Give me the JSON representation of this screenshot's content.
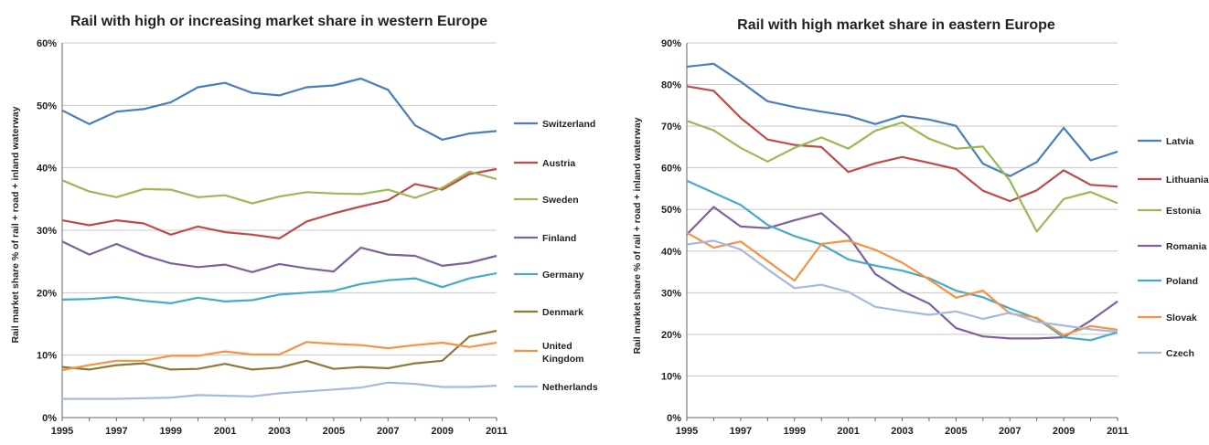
{
  "chart_data": [
    {
      "type": "line",
      "title": "Rail with high or increasing market share in western Europe",
      "ylabel": "Rail market share %  of rail + road + inland waterway",
      "xlabel": "",
      "x": [
        1995,
        1996,
        1997,
        1998,
        1999,
        2000,
        2001,
        2002,
        2003,
        2004,
        2005,
        2006,
        2007,
        2008,
        2009,
        2010,
        2011
      ],
      "xticks": [
        "1995",
        "1997",
        "1999",
        "2001",
        "2003",
        "2005",
        "2007",
        "2009",
        "2011"
      ],
      "ylim": [
        0,
        60
      ],
      "yticks": [
        "0%",
        "10%",
        "20%",
        "30%",
        "40%",
        "50%",
        "60%"
      ],
      "grid": true,
      "legend_position": "right",
      "series": [
        {
          "name": "Switzerland",
          "color": "#4a7ebb",
          "values": [
            49.2,
            47.0,
            49.0,
            49.4,
            50.5,
            52.9,
            53.6,
            52.0,
            51.6,
            52.9,
            53.2,
            54.3,
            52.5,
            46.8,
            44.5,
            45.5,
            45.9
          ]
        },
        {
          "name": "Austria",
          "color": "#be4b48",
          "values": [
            31.6,
            30.8,
            31.6,
            31.1,
            29.3,
            30.6,
            29.7,
            29.3,
            28.7,
            31.4,
            32.7,
            33.8,
            34.8,
            37.4,
            36.5,
            39.0,
            39.8
          ]
        },
        {
          "name": "Sweden",
          "color": "#98b954",
          "values": [
            38.0,
            36.2,
            35.3,
            36.6,
            36.5,
            35.3,
            35.6,
            34.3,
            35.4,
            36.1,
            35.9,
            35.8,
            36.5,
            35.2,
            36.8,
            39.4,
            38.2
          ]
        },
        {
          "name": "Finland",
          "color": "#7d60a0",
          "values": [
            28.2,
            26.1,
            27.8,
            26.0,
            24.7,
            24.1,
            24.5,
            23.3,
            24.6,
            23.9,
            23.4,
            27.2,
            26.1,
            25.9,
            24.3,
            24.8,
            25.9
          ]
        },
        {
          "name": "Germany",
          "color": "#46aac5",
          "values": [
            18.9,
            19.0,
            19.3,
            18.7,
            18.3,
            19.2,
            18.6,
            18.8,
            19.7,
            20.0,
            20.3,
            21.4,
            22.0,
            22.3,
            20.9,
            22.3,
            23.1
          ]
        },
        {
          "name": "Denmark",
          "color": "#8c7a3b",
          "values": [
            8.1,
            7.7,
            8.4,
            8.7,
            7.7,
            7.8,
            8.6,
            7.7,
            8.0,
            9.1,
            7.8,
            8.1,
            7.9,
            8.7,
            9.1,
            13.0,
            13.9
          ]
        },
        {
          "name": "United Kingdom",
          "color": "#f69240",
          "values": [
            7.6,
            8.4,
            9.1,
            9.1,
            9.9,
            9.9,
            10.6,
            10.1,
            10.1,
            12.1,
            11.8,
            11.6,
            11.1,
            11.6,
            12.0,
            11.3,
            12.0
          ]
        },
        {
          "name": "Netherlands",
          "color": "#a5b9dc",
          "values": [
            3.0,
            3.0,
            3.0,
            3.1,
            3.2,
            3.6,
            3.5,
            3.4,
            3.9,
            4.2,
            4.5,
            4.8,
            5.6,
            5.4,
            4.9,
            4.9,
            5.1
          ]
        }
      ]
    },
    {
      "type": "line",
      "title": "Rail with high market share in eastern Europe",
      "ylabel": "Rail market share %  of rail + road + inland waterway",
      "xlabel": "",
      "x": [
        1995,
        1996,
        1997,
        1998,
        1999,
        2000,
        2001,
        2002,
        2003,
        2004,
        2005,
        2006,
        2007,
        2008,
        2009,
        2010,
        2011
      ],
      "xticks": [
        "1995",
        "1997",
        "1999",
        "2001",
        "2003",
        "2005",
        "2007",
        "2009",
        "2011"
      ],
      "ylim": [
        0,
        90
      ],
      "yticks": [
        "0%",
        "10%",
        "20%",
        "30%",
        "40%",
        "50%",
        "60%",
        "70%",
        "80%",
        "90%"
      ],
      "grid": true,
      "legend_position": "right",
      "series": [
        {
          "name": "Latvia",
          "color": "#4a7ebb",
          "values": [
            84.3,
            85.0,
            80.7,
            76.0,
            74.6,
            73.5,
            72.5,
            70.5,
            72.5,
            71.6,
            70.1,
            61.0,
            58.0,
            61.4,
            69.6,
            61.8,
            63.9
          ]
        },
        {
          "name": "Lithuania",
          "color": "#be4b48",
          "values": [
            79.6,
            78.5,
            72.0,
            66.8,
            65.5,
            65.0,
            59.0,
            61.1,
            62.6,
            61.2,
            59.7,
            54.5,
            52.0,
            54.6,
            59.4,
            55.9,
            55.5
          ]
        },
        {
          "name": "Estonia",
          "color": "#98b954",
          "values": [
            71.3,
            69.0,
            64.8,
            61.5,
            64.8,
            67.3,
            64.6,
            68.9,
            70.9,
            67.0,
            64.6,
            65.1,
            56.9,
            44.7,
            52.5,
            54.2,
            51.5
          ]
        },
        {
          "name": "Romania",
          "color": "#7d60a0",
          "values": [
            44.0,
            50.6,
            45.9,
            45.5,
            47.4,
            49.1,
            43.6,
            34.5,
            30.4,
            27.4,
            21.5,
            19.5,
            19.0,
            19.0,
            19.3,
            23.3,
            27.9
          ]
        },
        {
          "name": "Poland",
          "color": "#46aac5",
          "values": [
            56.9,
            54.0,
            51.1,
            46.3,
            43.6,
            41.6,
            38.0,
            36.5,
            35.3,
            33.5,
            30.5,
            28.9,
            26.2,
            23.8,
            19.3,
            18.6,
            20.5
          ]
        },
        {
          "name": "Slovak",
          "color": "#f69240",
          "values": [
            44.4,
            40.8,
            42.3,
            37.6,
            32.9,
            41.7,
            42.5,
            40.3,
            37.2,
            33.2,
            28.8,
            30.5,
            25.0,
            24.0,
            19.8,
            22.0,
            21.1
          ]
        },
        {
          "name": "Czech",
          "color": "#a5b9dc",
          "values": [
            41.6,
            42.5,
            40.4,
            35.6,
            31.1,
            31.9,
            30.2,
            26.6,
            25.6,
            24.7,
            25.5,
            23.7,
            25.2,
            23.0,
            22.1,
            21.2,
            20.6
          ]
        }
      ]
    }
  ]
}
